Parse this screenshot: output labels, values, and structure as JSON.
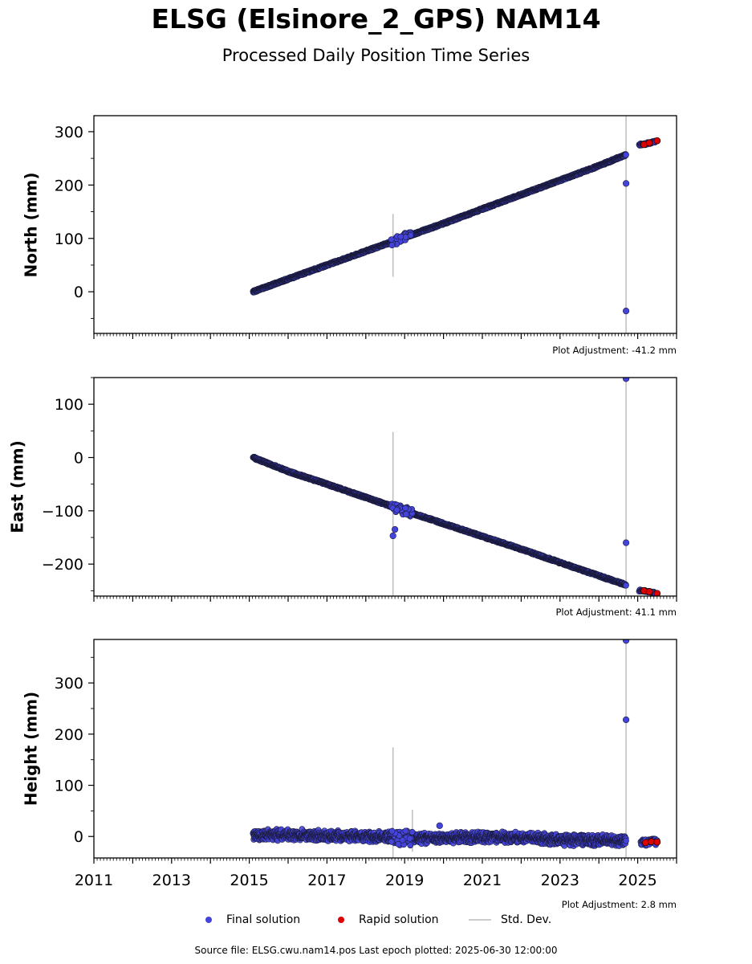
{
  "header": {
    "title": "ELSG (Elsinore_2_GPS) NAM14",
    "subtitle": "Processed Daily Position Time Series"
  },
  "legend": {
    "final_label": "Final solution",
    "rapid_label": "Rapid solution",
    "std_label": "Std. Dev.",
    "final_color": "#4444dd",
    "rapid_color": "#dd0000",
    "std_color": "#cccccc"
  },
  "footer": {
    "source": "Source file: ELSG.cwu.nam14.pos  Last epoch plotted: 2025-06-30 12:00:00"
  },
  "chart_data": [
    {
      "type": "scatter",
      "ylabel": "North (mm)",
      "adjustment": "Plot Adjustment: -41.2 mm",
      "xlim": [
        2011,
        2026
      ],
      "ylim": [
        -78,
        330
      ],
      "yticks": [
        0,
        100,
        200,
        300
      ],
      "xticks": [
        2011,
        2013,
        2015,
        2017,
        2019,
        2021,
        2023,
        2025
      ],
      "series": [
        {
          "kind": "final",
          "x": [
            2015.1,
            2016.0,
            2017.0,
            2018.0,
            2019.0,
            2020.0,
            2021.0,
            2022.0,
            2023.0,
            2024.0,
            2024.7
          ],
          "y": [
            0,
            24,
            50,
            76,
            102,
            128,
            155,
            182,
            209,
            236,
            257
          ]
        },
        {
          "kind": "rapid",
          "x": [
            2025.16,
            2025.3,
            2025.5
          ],
          "y": [
            276,
            279,
            283
          ]
        },
        {
          "kind": "outlier",
          "x": [
            2024.7,
            2024.7
          ],
          "y": [
            203,
            -36
          ]
        },
        {
          "kind": "std",
          "x": [
            2018.7,
            2024.7
          ],
          "y_low": [
            28,
            -78
          ],
          "y_high": [
            146,
            330
          ]
        }
      ]
    },
    {
      "type": "scatter",
      "ylabel": "East (mm)",
      "adjustment": "Plot Adjustment: 41.1 mm",
      "xlim": [
        2011,
        2026
      ],
      "ylim": [
        -260,
        150
      ],
      "yticks": [
        -200,
        -100,
        0,
        100
      ],
      "xticks": [
        2011,
        2013,
        2015,
        2017,
        2019,
        2021,
        2023,
        2025
      ],
      "series": [
        {
          "kind": "final",
          "x": [
            2015.1,
            2016.0,
            2017.0,
            2018.0,
            2019.0,
            2020.0,
            2021.0,
            2022.0,
            2023.0,
            2024.0,
            2024.7
          ],
          "y": [
            0,
            -26,
            -50,
            -75,
            -100,
            -124,
            -148,
            -172,
            -197,
            -222,
            -239
          ]
        },
        {
          "kind": "rapid",
          "x": [
            2025.16,
            2025.3,
            2025.5
          ],
          "y": [
            -250,
            -252,
            -255
          ]
        },
        {
          "kind": "outlier",
          "x": [
            2018.7,
            2018.75,
            2024.7,
            2024.7
          ],
          "y": [
            -147,
            -135,
            -160,
            148
          ]
        },
        {
          "kind": "std",
          "x": [
            2018.7,
            2024.7
          ],
          "y_low": [
            -260,
            -260
          ],
          "y_high": [
            48,
            150
          ]
        }
      ]
    },
    {
      "type": "scatter",
      "ylabel": "Height (mm)",
      "adjustment": "Plot Adjustment: 2.8 mm",
      "xlim": [
        2011,
        2026
      ],
      "ylim": [
        -42,
        385
      ],
      "yticks": [
        0,
        100,
        200,
        300
      ],
      "xticks": [
        2011,
        2013,
        2015,
        2017,
        2019,
        2021,
        2023,
        2025
      ],
      "series": [
        {
          "kind": "final",
          "x": [
            2015.1,
            2016.0,
            2017.0,
            2018.0,
            2019.0,
            2020.0,
            2021.0,
            2022.0,
            2023.0,
            2024.0,
            2024.7
          ],
          "y": [
            2,
            3,
            1,
            0,
            -3,
            -3,
            -2,
            -2,
            -6,
            -8,
            -10
          ]
        },
        {
          "kind": "rapid",
          "x": [
            2025.2,
            2025.35,
            2025.5
          ],
          "y": [
            -12,
            -10,
            -11
          ]
        },
        {
          "kind": "outlier",
          "x": [
            2019.9,
            2024.7,
            2024.7
          ],
          "y": [
            21,
            228,
            383
          ]
        },
        {
          "kind": "std",
          "x": [
            2018.7,
            2019.2,
            2024.7
          ],
          "y_low": [
            -42,
            -30,
            -42
          ],
          "y_high": [
            174,
            52,
            385
          ]
        }
      ]
    }
  ]
}
